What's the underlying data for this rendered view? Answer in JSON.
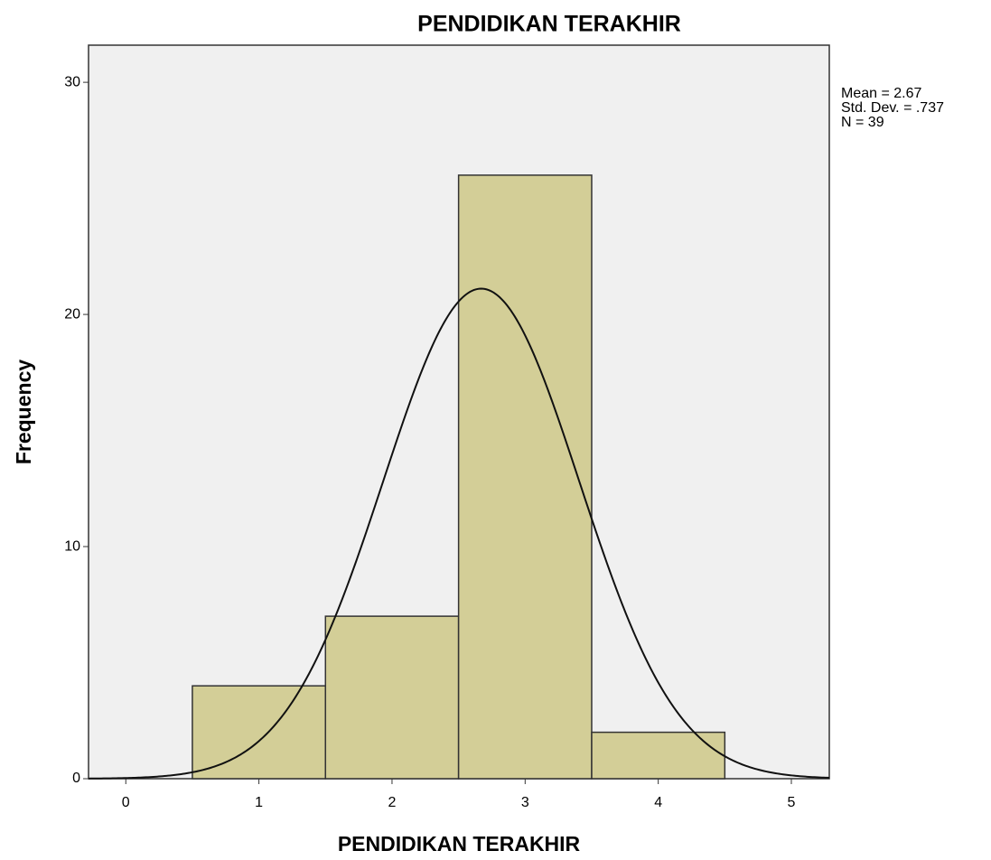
{
  "chart_data": {
    "type": "histogram",
    "title": "PENDIDIKAN TERAKHIR",
    "x_label": "PENDIDIKAN TERAKHIR",
    "y_label": "Frequency",
    "bins": [
      0.5,
      1.5,
      2.5,
      3.5,
      4.5
    ],
    "values": [
      4,
      7,
      26,
      2
    ],
    "color": "#d3ce97",
    "xlim": [
      -0.28,
      5.285
    ],
    "xticks": [
      0,
      1,
      2,
      3,
      4,
      5
    ],
    "ylim": [
      0,
      31.6
    ],
    "yticks": [
      0,
      10,
      20,
      30
    ],
    "normal_curve": {
      "mean": {
        "value": 2.67,
        "label": "Mean = 2.67"
      },
      "std": {
        "value": 0.737,
        "label": "Std. Dev. = .737"
      },
      "n": {
        "value": 39,
        "label": "N = 39"
      }
    }
  }
}
